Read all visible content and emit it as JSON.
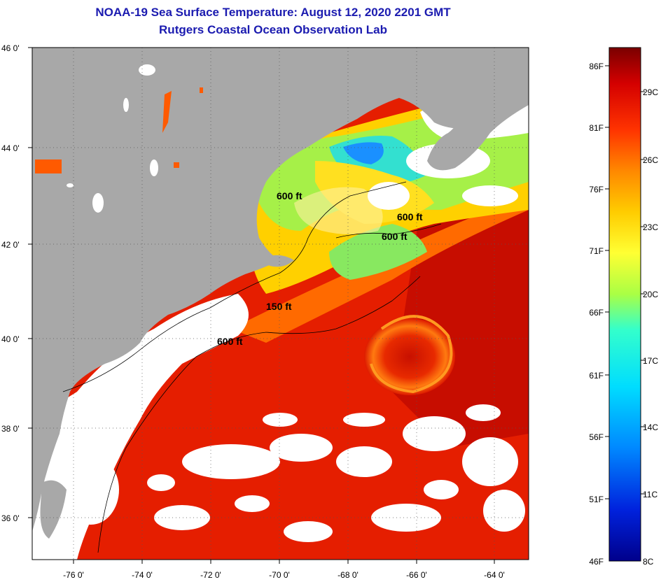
{
  "title": {
    "line1": "NOAA-19 Sea Surface Temperature:  August 12, 2020 2201 GMT",
    "line2": "Rutgers Coastal Ocean Observation Lab"
  },
  "map": {
    "lon_range": [
      -77,
      -63
    ],
    "lat_range": [
      35,
      46
    ],
    "lon_ticks": [
      "-76 0'",
      "-74 0'",
      "-72 0'",
      "-70 0'",
      "-68 0'",
      "-66 0'",
      "-64 0'"
    ],
    "lat_ticks": [
      "46 0'",
      "44 0'",
      "42 0'",
      "40 0'",
      "38 0'",
      "36 0'"
    ],
    "grid": "dotted",
    "land_color": "#aaaaaa",
    "cloud_color": "#ffffff",
    "contour_labels": [
      "600 ft",
      "600 ft",
      "600 ft",
      "150 ft",
      "600 ft"
    ]
  },
  "colorbar": {
    "fahrenheit_labels": [
      "86F",
      "81F",
      "76F",
      "71F",
      "66F",
      "61F",
      "56F",
      "51F",
      "46F"
    ],
    "celsius_labels": [
      "29C",
      "26C",
      "23C",
      "20C",
      "17C",
      "14C",
      "11C",
      "8C"
    ],
    "colors": [
      "#7a0000",
      "#d40000",
      "#ff3300",
      "#ff8800",
      "#ffcc00",
      "#ffff33",
      "#aaff44",
      "#33ffcc",
      "#00ddff",
      "#0088ff",
      "#0022dd",
      "#00008b"
    ]
  }
}
